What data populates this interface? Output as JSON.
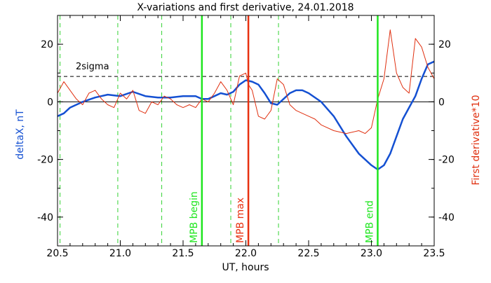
{
  "chart_data": {
    "type": "line",
    "title": "X-variations and first derivative, 24.01.2018",
    "xlabel": "UT, hours",
    "ylabel_left": "deltaX, nT",
    "ylabel_right": "First derivative*10",
    "xlim": [
      20.5,
      23.5
    ],
    "ylim": [
      -50,
      30
    ],
    "x_ticks": [
      "20.5",
      "21.0",
      "21.5",
      "22.0",
      "22.5",
      "23.0",
      "23.5"
    ],
    "y_ticks": [
      "20",
      "0",
      "-20",
      "-40"
    ],
    "sigma_label": "2sigma",
    "sigma_level": 8.8,
    "grid": false,
    "colors": {
      "deltaX": "#1450d2",
      "derivative": "#e03010",
      "mpb_marker": "#1ee61e",
      "mpb_max": "#e83010",
      "dashed_green": "#32d232",
      "axis": "#000000"
    },
    "vlines": [
      {
        "x": 20.52,
        "style": "dashed",
        "color": "green"
      },
      {
        "x": 20.98,
        "style": "dashed",
        "color": "green"
      },
      {
        "x": 21.33,
        "style": "dashed",
        "color": "green"
      },
      {
        "x": 21.88,
        "style": "dashed",
        "color": "green"
      },
      {
        "x": 22.26,
        "style": "dashed",
        "color": "green"
      },
      {
        "x": 21.65,
        "style": "solid",
        "color": "green",
        "label": "MPB begin"
      },
      {
        "x": 22.02,
        "style": "solid",
        "color": "red",
        "label": "MPB max"
      },
      {
        "x": 23.05,
        "style": "solid",
        "color": "green",
        "label": "MPB end"
      }
    ],
    "series": [
      {
        "name": "deltaX, nT",
        "axis": "left",
        "x": [
          20.5,
          20.55,
          20.6,
          20.7,
          20.8,
          20.9,
          21.0,
          21.1,
          21.2,
          21.3,
          21.4,
          21.5,
          21.6,
          21.65,
          21.7,
          21.75,
          21.8,
          21.85,
          21.9,
          21.95,
          22.0,
          22.05,
          22.1,
          22.15,
          22.2,
          22.25,
          22.3,
          22.35,
          22.4,
          22.45,
          22.5,
          22.6,
          22.7,
          22.8,
          22.9,
          23.0,
          23.05,
          23.1,
          23.15,
          23.2,
          23.25,
          23.3,
          23.35,
          23.4,
          23.45,
          23.5
        ],
        "y": [
          -5,
          -4,
          -2,
          0,
          1.5,
          2.5,
          2,
          3.5,
          2,
          1.5,
          1.5,
          2,
          2,
          1,
          1,
          2,
          3,
          2.5,
          3.5,
          6,
          7.5,
          7,
          6,
          3,
          -0.5,
          -1,
          1,
          3,
          4,
          4,
          3,
          0,
          -5,
          -12,
          -18,
          -22,
          -23.5,
          -22,
          -18,
          -12,
          -6,
          -2,
          2,
          8,
          13,
          14
        ]
      },
      {
        "name": "First derivative*10",
        "axis": "right",
        "x": [
          20.5,
          20.55,
          20.6,
          20.65,
          20.7,
          20.75,
          20.8,
          20.85,
          20.9,
          20.95,
          21.0,
          21.05,
          21.1,
          21.15,
          21.2,
          21.25,
          21.3,
          21.35,
          21.4,
          21.45,
          21.5,
          21.55,
          21.6,
          21.65,
          21.7,
          21.75,
          21.8,
          21.85,
          21.9,
          21.95,
          22.0,
          22.02,
          22.05,
          22.1,
          22.15,
          22.2,
          22.25,
          22.3,
          22.35,
          22.4,
          22.45,
          22.5,
          22.55,
          22.6,
          22.7,
          22.8,
          22.9,
          22.95,
          23.0,
          23.05,
          23.1,
          23.15,
          23.2,
          23.25,
          23.3,
          23.35,
          23.4,
          23.45,
          23.5
        ],
        "y": [
          3,
          7,
          4,
          1,
          -1,
          3,
          4,
          1,
          -1,
          -2,
          3,
          1,
          4,
          -3,
          -4,
          0,
          -1,
          2,
          1,
          -1,
          -2,
          -1,
          -2,
          1,
          0,
          3,
          7,
          4,
          -1,
          9,
          10,
          6,
          4,
          -5,
          -6,
          -3,
          8,
          6,
          -1,
          -3,
          -4,
          -5,
          -6,
          -8,
          -10,
          -11,
          -10,
          -11,
          -9,
          1,
          8,
          25,
          10,
          5,
          3,
          22,
          19,
          12,
          8
        ]
      }
    ]
  }
}
